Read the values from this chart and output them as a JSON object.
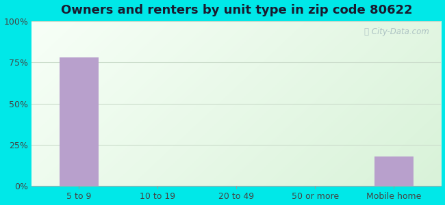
{
  "title": "Owners and renters by unit type in zip code 80622",
  "categories": [
    "5 to 9",
    "10 to 19",
    "20 to 49",
    "50 or more",
    "Mobile home"
  ],
  "values": [
    78.0,
    0.0,
    0.0,
    0.0,
    18.0
  ],
  "bar_color": "#b8a0cc",
  "yticks": [
    0,
    25,
    50,
    75,
    100
  ],
  "ytick_labels": [
    "0%",
    "25%",
    "50%",
    "75%",
    "100%"
  ],
  "ylim": [
    0,
    100
  ],
  "bg_outer": "#00e8e8",
  "title_fontsize": 13,
  "tick_fontsize": 9,
  "watermark": "City-Data.com",
  "grid_color": "#ccddcc",
  "title_color": "#1a1a2e"
}
